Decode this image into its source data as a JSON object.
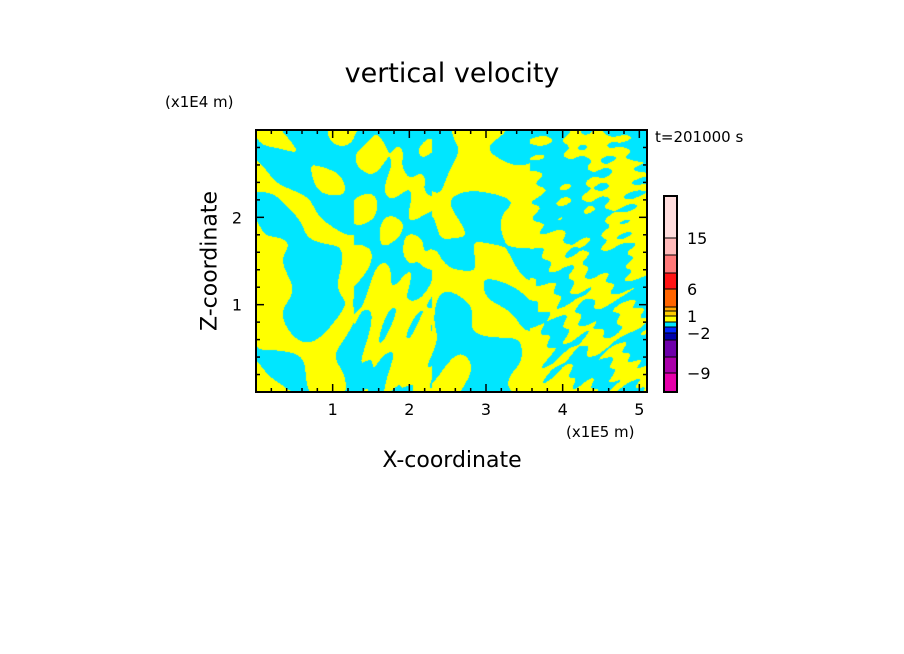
{
  "chart_data": {
    "type": "heatmap",
    "title": "vertical velocity",
    "xlabel": "X-coordinate",
    "ylabel": "Z-coordinate",
    "x_unit": "(x1E5 m)",
    "y_unit": "(x1E4 m)",
    "annotation": "t=201000 s",
    "xlim": [
      0,
      5.1
    ],
    "ylim": [
      0,
      3.0
    ],
    "x_ticks": [
      "1",
      "2",
      "3",
      "4",
      "5"
    ],
    "x_tick_values": [
      1,
      2,
      3,
      4,
      5
    ],
    "y_ticks": [
      "1",
      "2"
    ],
    "y_tick_values": [
      1,
      2
    ],
    "dominant_colors": {
      "positive_0_to_1": "#ffff00",
      "negative_-1_to_0": "#00e6ff"
    },
    "colorbar": {
      "levels": [
        -12,
        -9,
        -6,
        -3,
        -2,
        -1,
        0,
        1,
        2,
        3,
        6,
        9,
        12,
        15,
        18
      ],
      "colors": [
        "#e600aa",
        "#aa00aa",
        "#6e00aa",
        "#0000aa",
        "#0028ff",
        "#00e6ff",
        "#ffff00",
        "#ffcc00",
        "#ffaa00",
        "#ff6400",
        "#ff1414",
        "#ff7878",
        "#ffb9b9",
        "#ffdddd"
      ],
      "labels": [
        "15",
        "6",
        "1",
        "−2",
        "−9"
      ],
      "label_values": [
        15,
        6,
        1,
        -2,
        -9
      ]
    }
  }
}
